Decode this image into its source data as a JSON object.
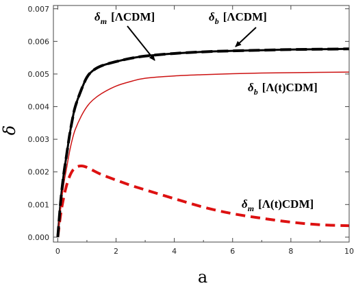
{
  "chart_data": {
    "type": "line",
    "xlabel": "a",
    "ylabel": "δ",
    "xlim": [
      -0.15,
      10
    ],
    "ylim": [
      -0.00015,
      0.0071
    ],
    "x_ticks": [
      0,
      2,
      4,
      6,
      8,
      10
    ],
    "y_ticks": [
      0.0,
      0.001,
      0.002,
      0.003,
      0.004,
      0.005,
      0.006,
      0.007
    ],
    "x_tick_labels": [
      "0",
      "2",
      "4",
      "6",
      "8",
      "10"
    ],
    "y_tick_labels": [
      "0.000",
      "0.001",
      "0.002",
      "0.003",
      "0.004",
      "0.005",
      "0.006",
      "0.007"
    ],
    "grid": false,
    "series": [
      {
        "name": "δm [ΛCDM]",
        "color": "#000000",
        "style": "solid",
        "x": [
          0,
          0.1,
          0.2,
          0.3,
          0.4,
          0.5,
          0.6,
          0.8,
          1.0,
          1.2,
          1.5,
          2.0,
          2.5,
          3,
          4,
          5,
          6,
          7,
          8,
          9,
          10
        ],
        "y": [
          0,
          0.0011,
          0.0019,
          0.0025,
          0.0031,
          0.0036,
          0.004,
          0.0045,
          0.0049,
          0.0051,
          0.00525,
          0.00538,
          0.00548,
          0.00555,
          0.00563,
          0.00568,
          0.00571,
          0.00573,
          0.00575,
          0.00576,
          0.00577
        ]
      },
      {
        "name": "δb [ΛCDM]",
        "color": "#000000",
        "style": "dashed",
        "x": [
          0,
          0.1,
          0.2,
          0.3,
          0.4,
          0.5,
          0.6,
          0.8,
          1.0,
          1.2,
          1.5,
          2.0,
          2.5,
          3,
          4,
          5,
          6,
          7,
          8,
          9,
          10
        ],
        "y": [
          0,
          0.0011,
          0.0019,
          0.0025,
          0.0031,
          0.0036,
          0.004,
          0.0045,
          0.0049,
          0.0051,
          0.00525,
          0.00538,
          0.00548,
          0.00555,
          0.00563,
          0.00568,
          0.00571,
          0.00573,
          0.00575,
          0.00576,
          0.00577
        ]
      },
      {
        "name": "δb [Λ(t)CDM]",
        "color": "#cc1111",
        "style": "solid",
        "x": [
          0,
          0.1,
          0.2,
          0.3,
          0.4,
          0.5,
          0.6,
          0.8,
          1.0,
          1.2,
          1.5,
          2.0,
          2.5,
          3,
          4,
          5,
          6,
          7,
          8,
          9,
          10
        ],
        "y": [
          0,
          0.0009,
          0.0016,
          0.0021,
          0.0026,
          0.003,
          0.0033,
          0.0037,
          0.004,
          0.0042,
          0.0044,
          0.00463,
          0.00477,
          0.00487,
          0.00494,
          0.00498,
          0.00501,
          0.00503,
          0.00504,
          0.00505,
          0.00506
        ]
      },
      {
        "name": "δm [Λ(t)CDM]",
        "color": "#dd1111",
        "style": "dashed",
        "x": [
          0,
          0.1,
          0.2,
          0.3,
          0.4,
          0.5,
          0.6,
          0.7,
          0.85,
          1.0,
          1.2,
          1.5,
          2.0,
          2.5,
          3,
          4,
          5,
          6,
          7,
          8,
          9,
          10
        ],
        "y": [
          0,
          0.0007,
          0.0012,
          0.00158,
          0.00185,
          0.00203,
          0.00212,
          0.00217,
          0.00218,
          0.00214,
          0.00205,
          0.00192,
          0.00175,
          0.00159,
          0.00145,
          0.00118,
          0.00092,
          0.00072,
          0.00058,
          0.00046,
          0.00038,
          0.00035
        ]
      }
    ],
    "annotations": [
      {
        "base": "δ",
        "sub": "m",
        "bracket": "[ΛCDM]",
        "series": 0
      },
      {
        "base": "δ",
        "sub": "b",
        "bracket": "[ΛCDM]",
        "series": 1
      },
      {
        "base": "δ",
        "sub": "b",
        "bracket": "[Λ(t)CDM]",
        "series": 2
      },
      {
        "base": "δ",
        "sub": "m",
        "bracket": "[Λ(t)CDM]",
        "series": 3
      }
    ]
  }
}
